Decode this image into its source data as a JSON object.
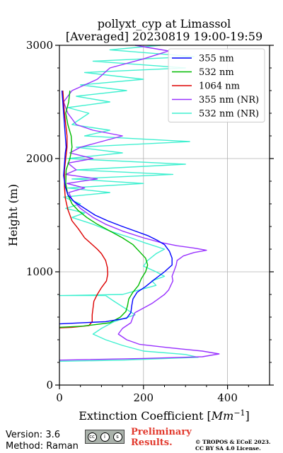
{
  "chart_data": {
    "type": "line",
    "title": "pollyxt_cyp at Limassol",
    "subtitle": "[Averaged] 20230819 19:00-19:59",
    "xlabel": "Extinction Coefficient [Mm⁻¹]",
    "xlabel_main": "Extinction Coefficient [",
    "xlabel_unit": "Mm",
    "xlabel_sup": "−1",
    "xlabel_end": "]",
    "ylabel": "Height (m)",
    "xlim": [
      0,
      500
    ],
    "ylim": [
      0,
      3000
    ],
    "xticks": [
      0,
      200,
      400
    ],
    "yticks": [
      0,
      1000,
      2000,
      3000
    ],
    "grid": true,
    "legend_position": "top-right",
    "series": [
      {
        "name": "355 nm",
        "color": "#0000ff",
        "points": [
          [
            0,
            540
          ],
          [
            110,
            560
          ],
          [
            160,
            590
          ],
          [
            170,
            640
          ],
          [
            172,
            700
          ],
          [
            175,
            760
          ],
          [
            185,
            820
          ],
          [
            205,
            870
          ],
          [
            225,
            930
          ],
          [
            250,
            1000
          ],
          [
            268,
            1060
          ],
          [
            268,
            1120
          ],
          [
            262,
            1180
          ],
          [
            250,
            1240
          ],
          [
            232,
            1280
          ],
          [
            210,
            1320
          ],
          [
            180,
            1360
          ],
          [
            150,
            1400
          ],
          [
            115,
            1450
          ],
          [
            85,
            1500
          ],
          [
            60,
            1560
          ],
          [
            35,
            1620
          ],
          [
            20,
            1680
          ],
          [
            14,
            1750
          ],
          [
            10,
            1850
          ],
          [
            12,
            1950
          ],
          [
            14,
            2050
          ],
          [
            16,
            2100
          ],
          [
            14,
            2200
          ],
          [
            12,
            2300
          ],
          [
            10,
            2400
          ],
          [
            8,
            2500
          ],
          [
            6,
            2600
          ]
        ]
      },
      {
        "name": "532 nm",
        "color": "#00bb00",
        "points": [
          [
            0,
            510
          ],
          [
            55,
            520
          ],
          [
            120,
            550
          ],
          [
            145,
            600
          ],
          [
            158,
            650
          ],
          [
            162,
            700
          ],
          [
            165,
            760
          ],
          [
            175,
            820
          ],
          [
            188,
            880
          ],
          [
            195,
            940
          ],
          [
            205,
            1000
          ],
          [
            210,
            1060
          ],
          [
            205,
            1120
          ],
          [
            190,
            1180
          ],
          [
            175,
            1240
          ],
          [
            150,
            1300
          ],
          [
            120,
            1360
          ],
          [
            90,
            1420
          ],
          [
            65,
            1480
          ],
          [
            45,
            1540
          ],
          [
            30,
            1600
          ],
          [
            20,
            1680
          ],
          [
            15,
            1780
          ],
          [
            16,
            1900
          ],
          [
            25,
            2000
          ],
          [
            30,
            2100
          ],
          [
            28,
            2200
          ],
          [
            20,
            2300
          ],
          [
            15,
            2400
          ],
          [
            22,
            2500
          ],
          [
            25,
            2600
          ]
        ]
      },
      {
        "name": "1064 nm",
        "color": "#dd0000",
        "points": [
          [
            0,
            505
          ],
          [
            30,
            510
          ],
          [
            70,
            525
          ],
          [
            78,
            560
          ],
          [
            78,
            620
          ],
          [
            80,
            680
          ],
          [
            82,
            740
          ],
          [
            90,
            800
          ],
          [
            100,
            860
          ],
          [
            112,
            920
          ],
          [
            115,
            980
          ],
          [
            114,
            1040
          ],
          [
            110,
            1100
          ],
          [
            100,
            1160
          ],
          [
            90,
            1200
          ],
          [
            75,
            1250
          ],
          [
            60,
            1300
          ],
          [
            45,
            1380
          ],
          [
            30,
            1450
          ],
          [
            20,
            1550
          ],
          [
            14,
            1650
          ],
          [
            12,
            1750
          ],
          [
            12,
            1900
          ],
          [
            15,
            2000
          ],
          [
            18,
            2100
          ],
          [
            18,
            2200
          ],
          [
            15,
            2300
          ],
          [
            12,
            2400
          ],
          [
            10,
            2500
          ],
          [
            8,
            2600
          ]
        ]
      },
      {
        "name": "355 nm (NR)",
        "color": "#9932ff",
        "points": [
          [
            0,
            220
          ],
          [
            200,
            235
          ],
          [
            340,
            250
          ],
          [
            380,
            275
          ],
          [
            340,
            300
          ],
          [
            260,
            330
          ],
          [
            190,
            360
          ],
          [
            160,
            400
          ],
          [
            140,
            450
          ],
          [
            150,
            500
          ],
          [
            170,
            550
          ],
          [
            175,
            600
          ],
          [
            180,
            640
          ],
          [
            200,
            680
          ],
          [
            220,
            720
          ],
          [
            235,
            760
          ],
          [
            250,
            800
          ],
          [
            260,
            840
          ],
          [
            265,
            880
          ],
          [
            270,
            920
          ],
          [
            268,
            960
          ],
          [
            272,
            1000
          ],
          [
            278,
            1060
          ],
          [
            280,
            1100
          ],
          [
            295,
            1140
          ],
          [
            320,
            1170
          ],
          [
            350,
            1190
          ],
          [
            320,
            1210
          ],
          [
            280,
            1230
          ],
          [
            240,
            1260
          ],
          [
            200,
            1300
          ],
          [
            150,
            1360
          ],
          [
            110,
            1420
          ],
          [
            80,
            1480
          ],
          [
            50,
            1560
          ],
          [
            30,
            1640
          ],
          [
            22,
            1700
          ],
          [
            60,
            1740
          ],
          [
            18,
            1780
          ],
          [
            90,
            1820
          ],
          [
            15,
            1860
          ],
          [
            40,
            1900
          ],
          [
            20,
            1960
          ],
          [
            80,
            2000
          ],
          [
            25,
            2050
          ],
          [
            50,
            2100
          ],
          [
            100,
            2150
          ],
          [
            150,
            2200
          ],
          [
            80,
            2250
          ],
          [
            40,
            2300
          ],
          [
            20,
            2400
          ],
          [
            10,
            2500
          ],
          [
            30,
            2600
          ],
          [
            90,
            2700
          ],
          [
            120,
            2800
          ],
          [
            200,
            2880
          ],
          [
            260,
            2950
          ],
          [
            180,
            3000
          ]
        ]
      },
      {
        "name": "532 nm (NR)",
        "color": "#40f0d0",
        "points": [
          [
            0,
            210
          ],
          [
            150,
            220
          ],
          [
            330,
            245
          ],
          [
            300,
            270
          ],
          [
            200,
            300
          ],
          [
            150,
            350
          ],
          [
            110,
            400
          ],
          [
            80,
            450
          ],
          [
            100,
            500
          ],
          [
            130,
            560
          ],
          [
            180,
            620
          ],
          [
            155,
            680
          ],
          [
            130,
            740
          ],
          [
            110,
            790
          ],
          [
            0,
            790
          ],
          [
            150,
            800
          ],
          [
            190,
            840
          ],
          [
            230,
            880
          ],
          [
            220,
            920
          ],
          [
            250,
            960
          ],
          [
            230,
            1000
          ],
          [
            200,
            1050
          ],
          [
            210,
            1100
          ],
          [
            230,
            1160
          ],
          [
            250,
            1200
          ],
          [
            200,
            1260
          ],
          [
            170,
            1300
          ],
          [
            120,
            1360
          ],
          [
            80,
            1420
          ],
          [
            30,
            1480
          ],
          [
            60,
            1520
          ],
          [
            15,
            1560
          ],
          [
            50,
            1600
          ],
          [
            10,
            1660
          ],
          [
            120,
            1700
          ],
          [
            20,
            1740
          ],
          [
            200,
            1780
          ],
          [
            30,
            1820
          ],
          [
            270,
            1860
          ],
          [
            40,
            1900
          ],
          [
            300,
            1950
          ],
          [
            20,
            2000
          ],
          [
            150,
            2050
          ],
          [
            40,
            2100
          ],
          [
            310,
            2150
          ],
          [
            60,
            2200
          ],
          [
            120,
            2250
          ],
          [
            30,
            2300
          ],
          [
            70,
            2400
          ],
          [
            20,
            2450
          ],
          [
            120,
            2500
          ],
          [
            40,
            2550
          ],
          [
            160,
            2600
          ],
          [
            50,
            2650
          ],
          [
            200,
            2700
          ],
          [
            60,
            2760
          ],
          [
            300,
            2800
          ],
          [
            80,
            2860
          ],
          [
            320,
            2900
          ],
          [
            120,
            2960
          ],
          [
            240,
            3000
          ]
        ]
      }
    ]
  },
  "footer": {
    "version": "Version: 3.6",
    "method": "Method: Raman",
    "badge_cc": "cc",
    "badge_by": "i",
    "badge_sa": "s",
    "badge_text": "BY   SA",
    "preliminary_line1": "Preliminary",
    "preliminary_line2": "Results.",
    "copyright_line1": "© TROPOS & ECoE 2023.",
    "copyright_line2": "CC BY SA 4.0 License."
  }
}
